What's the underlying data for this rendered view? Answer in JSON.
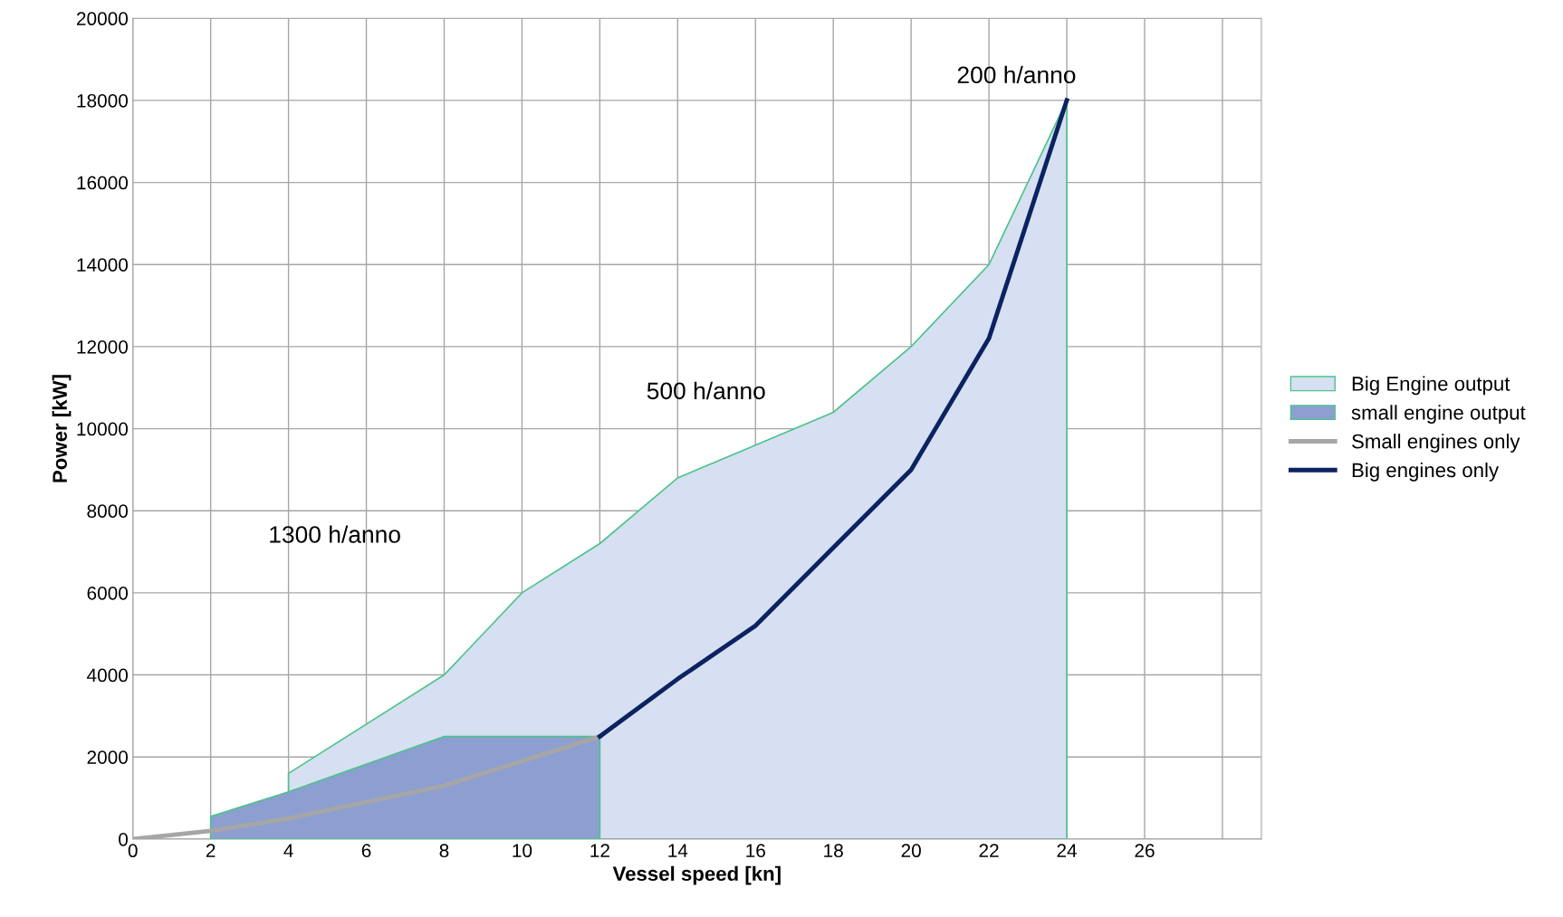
{
  "chart_data": {
    "type": "line",
    "xlabel": "Vessel speed [kn]",
    "ylabel": "Power [kW]",
    "xlim": [
      0,
      29
    ],
    "xticks": [
      0,
      2,
      4,
      6,
      8,
      10,
      12,
      14,
      16,
      18,
      20,
      22,
      24,
      26,
      {
        "value": 28,
        "label": null
      }
    ],
    "ylim": [
      0,
      20000
    ],
    "yticks": [
      0,
      2000,
      4000,
      6000,
      8000,
      10000,
      12000,
      14000,
      16000,
      18000,
      20000
    ],
    "grid": true,
    "legend": "right",
    "marker": "none",
    "line_style": "solid",
    "series": [
      {
        "name": "Big Engine output",
        "type": "area",
        "color": "#d6e0f2",
        "x": [
          4,
          8,
          10,
          12,
          14,
          16,
          18,
          20,
          22,
          24
        ],
        "values": [
          1600,
          4000,
          6000,
          7200,
          8800,
          9600,
          10400,
          12000,
          14000,
          18000
        ]
      },
      {
        "name": "small engine output",
        "type": "area",
        "color": "#8c9fd0",
        "x": [
          2,
          4,
          8,
          12
        ],
        "values": [
          550,
          1150,
          2500,
          2500
        ]
      },
      {
        "name": "Small engines only",
        "color": "#a6a6a6",
        "x": [
          0,
          2,
          4,
          8,
          12
        ],
        "values": [
          0,
          200,
          500,
          1300,
          2500
        ]
      },
      {
        "name": "Big engines only",
        "color": "#0b2360",
        "x": [
          12,
          14,
          16,
          18,
          20,
          22,
          24
        ],
        "values": [
          2500,
          3900,
          5200,
          7100,
          9000,
          12200,
          18000
        ]
      }
    ],
    "annotations": [
      "200 h/anno",
      "500 h/anno",
      "1300 h/anno"
    ]
  }
}
